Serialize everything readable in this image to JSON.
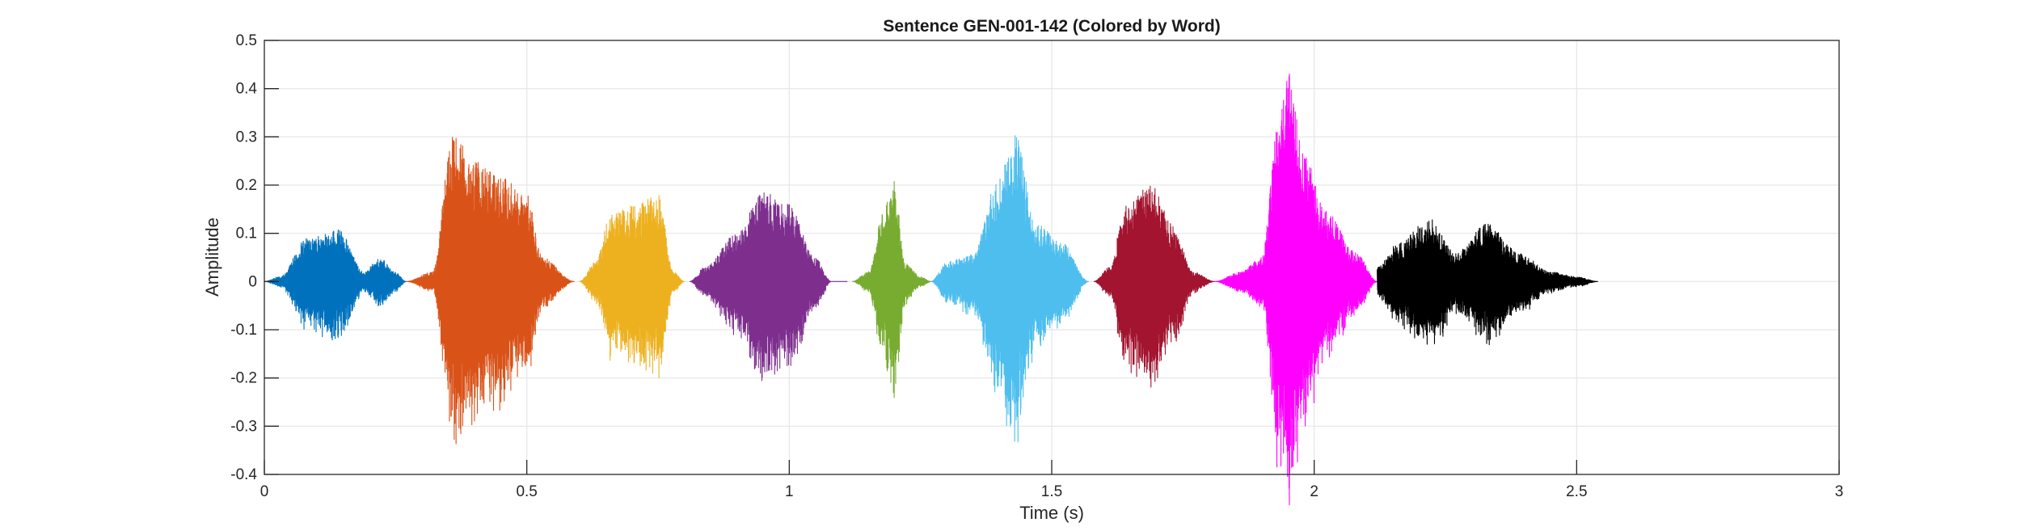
{
  "chart_data": {
    "type": "line",
    "title": "Sentence GEN-001-142 (Colored by Word)",
    "xlabel": "Time (s)",
    "ylabel": "Amplitude",
    "xlim": [
      0,
      3
    ],
    "ylim": [
      -0.4,
      0.5
    ],
    "x_ticks": [
      0,
      0.5,
      1,
      1.5,
      2,
      2.5,
      3
    ],
    "y_ticks": [
      -0.4,
      -0.3,
      -0.2,
      -0.1,
      0,
      0.1,
      0.2,
      0.3,
      0.4,
      0.5
    ],
    "x_tick_labels": [
      "0",
      "0.5",
      "1",
      "1.5",
      "2",
      "2.5",
      "3"
    ],
    "y_tick_labels": [
      "-0.4",
      "-0.3",
      "-0.2",
      "-0.1",
      "0",
      "0.1",
      "0.2",
      "0.3",
      "0.4",
      "0.5"
    ],
    "grid": true,
    "legend": "none",
    "series": [
      {
        "color": "#0072BD",
        "x_start": 0.0,
        "x_end": 0.27,
        "peaks": [
          [
            0.0,
            0.0
          ],
          [
            0.03,
            0.01
          ],
          [
            0.08,
            0.09
          ],
          [
            0.14,
            0.11
          ],
          [
            0.19,
            0.02
          ],
          [
            0.22,
            0.05
          ],
          [
            0.25,
            0.02
          ],
          [
            0.27,
            0.0
          ]
        ]
      },
      {
        "color": "#D95319",
        "x_start": 0.27,
        "x_end": 0.59,
        "peaks": [
          [
            0.27,
            0.0
          ],
          [
            0.32,
            0.02
          ],
          [
            0.36,
            0.31
          ],
          [
            0.4,
            0.25
          ],
          [
            0.45,
            0.22
          ],
          [
            0.5,
            0.18
          ],
          [
            0.53,
            0.05
          ],
          [
            0.59,
            0.0
          ]
        ]
      },
      {
        "color": "#EDB120",
        "x_start": 0.6,
        "x_end": 0.8,
        "peaks": [
          [
            0.6,
            0.0
          ],
          [
            0.63,
            0.04
          ],
          [
            0.66,
            0.14
          ],
          [
            0.71,
            0.16
          ],
          [
            0.75,
            0.18
          ],
          [
            0.78,
            0.02
          ],
          [
            0.8,
            0.0
          ]
        ]
      },
      {
        "color": "#7E2F8E",
        "x_start": 0.81,
        "x_end": 1.11,
        "peaks": [
          [
            0.81,
            0.0
          ],
          [
            0.84,
            0.03
          ],
          [
            0.9,
            0.1
          ],
          [
            0.95,
            0.19
          ],
          [
            1.0,
            0.16
          ],
          [
            1.05,
            0.05
          ],
          [
            1.08,
            0.0
          ],
          [
            1.11,
            0.0
          ]
        ]
      },
      {
        "color": "#77AC30",
        "x_start": 1.12,
        "x_end": 1.27,
        "peaks": [
          [
            1.12,
            0.0
          ],
          [
            1.15,
            0.02
          ],
          [
            1.18,
            0.15
          ],
          [
            1.2,
            0.21
          ],
          [
            1.22,
            0.04
          ],
          [
            1.25,
            0.01
          ],
          [
            1.27,
            0.0
          ]
        ]
      },
      {
        "color": "#4DBEEE",
        "x_start": 1.27,
        "x_end": 1.57,
        "peaks": [
          [
            1.27,
            0.0
          ],
          [
            1.3,
            0.04
          ],
          [
            1.35,
            0.06
          ],
          [
            1.4,
            0.22
          ],
          [
            1.43,
            0.31
          ],
          [
            1.47,
            0.12
          ],
          [
            1.52,
            0.08
          ],
          [
            1.57,
            0.0
          ]
        ]
      },
      {
        "color": "#A2142F",
        "x_start": 1.58,
        "x_end": 1.81,
        "peaks": [
          [
            1.58,
            0.0
          ],
          [
            1.61,
            0.03
          ],
          [
            1.64,
            0.16
          ],
          [
            1.69,
            0.2
          ],
          [
            1.73,
            0.12
          ],
          [
            1.77,
            0.02
          ],
          [
            1.81,
            0.0
          ]
        ]
      },
      {
        "color": "#FF00FF",
        "x_start": 1.81,
        "x_end": 2.12,
        "peaks": [
          [
            1.81,
            0.0
          ],
          [
            1.86,
            0.02
          ],
          [
            1.9,
            0.05
          ],
          [
            1.93,
            0.32
          ],
          [
            1.95,
            0.44
          ],
          [
            1.98,
            0.27
          ],
          [
            2.02,
            0.15
          ],
          [
            2.08,
            0.06
          ],
          [
            2.12,
            0.0
          ]
        ]
      },
      {
        "color": "#000000",
        "x_start": 2.12,
        "x_end": 2.54,
        "peaks": [
          [
            2.12,
            0.03
          ],
          [
            2.16,
            0.08
          ],
          [
            2.22,
            0.13
          ],
          [
            2.27,
            0.06
          ],
          [
            2.33,
            0.12
          ],
          [
            2.39,
            0.06
          ],
          [
            2.45,
            0.02
          ],
          [
            2.5,
            0.01
          ],
          [
            2.54,
            0.0
          ]
        ]
      }
    ]
  }
}
